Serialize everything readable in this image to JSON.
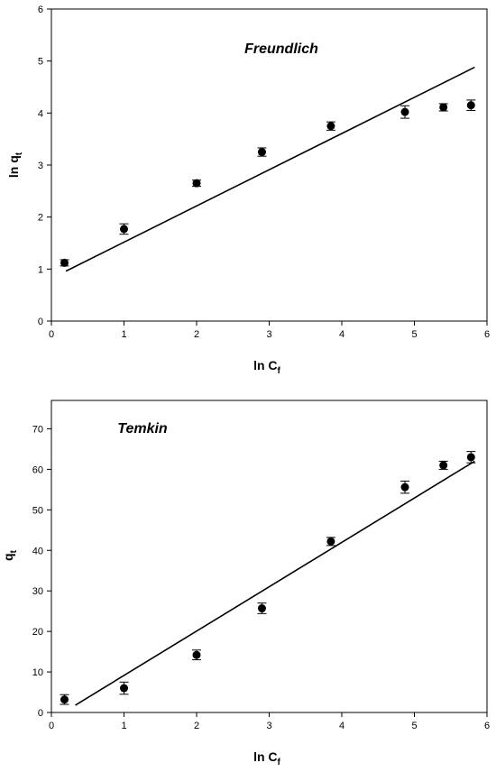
{
  "chart_data": [
    {
      "type": "scatter",
      "title": "Freundlich",
      "xlabel": "ln C",
      "xlabel_sub": "f",
      "ylabel": "ln q",
      "ylabel_sub": "t",
      "xlim": [
        0,
        6
      ],
      "ylim": [
        0,
        6
      ],
      "xticks": [
        "0",
        "1",
        "2",
        "3",
        "4",
        "5",
        "6"
      ],
      "yticks": [
        "0",
        "1",
        "2",
        "3",
        "4",
        "5",
        "6"
      ],
      "grid": false,
      "points": {
        "x": [
          0.18,
          1.0,
          2.0,
          2.9,
          3.85,
          4.87,
          5.4,
          5.78
        ],
        "y": [
          1.12,
          1.77,
          2.65,
          3.25,
          3.75,
          4.02,
          4.11,
          4.15
        ],
        "err": [
          0.06,
          0.1,
          0.06,
          0.08,
          0.08,
          0.12,
          0.07,
          0.1
        ]
      },
      "fit_line": {
        "x": [
          0.2,
          5.83
        ],
        "y": [
          0.96,
          4.88
        ]
      }
    },
    {
      "type": "scatter",
      "title": "Temkin",
      "xlabel": "ln C",
      "xlabel_sub": "f",
      "ylabel": "q",
      "ylabel_sub": "t",
      "xlim": [
        0,
        6
      ],
      "ylim": [
        0,
        77
      ],
      "xticks": [
        "0",
        "1",
        "2",
        "3",
        "4",
        "5",
        "6"
      ],
      "yticks": [
        "0",
        "10",
        "20",
        "30",
        "40",
        "50",
        "60",
        "70"
      ],
      "grid": false,
      "points": {
        "x": [
          0.18,
          1.0,
          2.0,
          2.9,
          3.85,
          4.87,
          5.4,
          5.78
        ],
        "y": [
          3.2,
          6.0,
          14.2,
          25.7,
          42.2,
          55.6,
          61.0,
          63.0
        ],
        "err": [
          1.2,
          1.5,
          1.2,
          1.3,
          1.0,
          1.5,
          1.0,
          1.4
        ]
      },
      "fit_line": {
        "x": [
          0.33,
          5.83
        ],
        "y": [
          1.8,
          62.0
        ]
      }
    }
  ]
}
